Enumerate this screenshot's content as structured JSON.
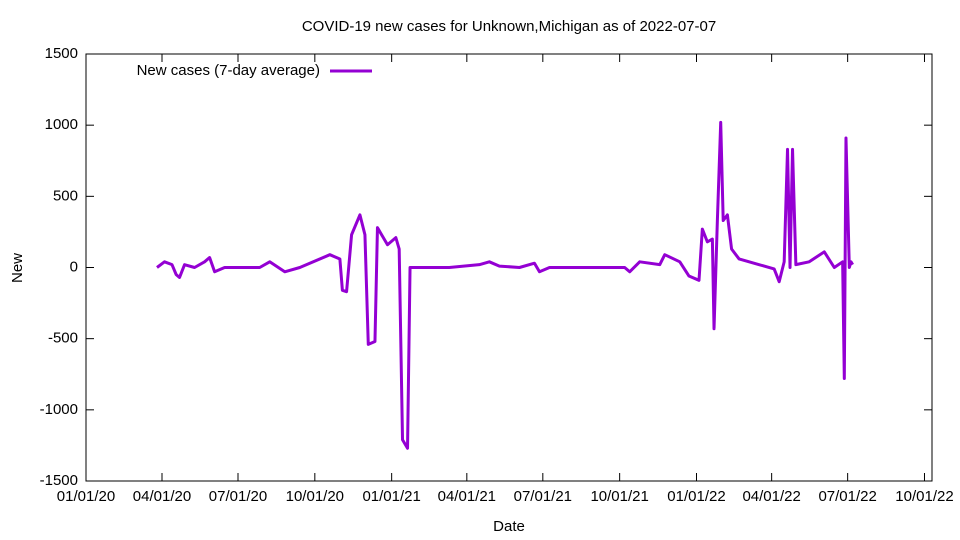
{
  "chart_data": {
    "type": "line",
    "title": "COVID-19 new cases for Unknown,Michigan as of 2022-07-07",
    "x_label": "Date",
    "y_label": "New",
    "legend": "top left",
    "xlim": [
      "2020-01-01",
      "2022-10-10"
    ],
    "ylim": [
      -1500,
      1500
    ],
    "yticks": [
      -1500,
      -1000,
      -500,
      0,
      500,
      1000,
      1500
    ],
    "xticks": [
      {
        "value": "2020-01-01",
        "label": "01/01/20"
      },
      {
        "value": "2020-04-01",
        "label": "04/01/20"
      },
      {
        "value": "2020-07-01",
        "label": "07/01/20"
      },
      {
        "value": "2020-10-01",
        "label": "10/01/20"
      },
      {
        "value": "2021-01-01",
        "label": "01/01/21"
      },
      {
        "value": "2021-04-01",
        "label": "04/01/21"
      },
      {
        "value": "2021-07-01",
        "label": "07/01/21"
      },
      {
        "value": "2021-10-01",
        "label": "10/01/21"
      },
      {
        "value": "2022-01-01",
        "label": "01/01/22"
      },
      {
        "value": "2022-04-01",
        "label": "04/01/22"
      },
      {
        "value": "2022-07-01",
        "label": "07/01/22"
      },
      {
        "value": "2022-10-01",
        "label": "10/01/22"
      }
    ],
    "x": [
      "2020-03-26",
      "2020-04-04",
      "2020-04-13",
      "2020-04-18",
      "2020-04-22",
      "2020-04-28",
      "2020-05-10",
      "2020-05-22",
      "2020-05-28",
      "2020-06-03",
      "2020-06-15",
      "2020-07-27",
      "2020-08-08",
      "2020-08-26",
      "2020-09-13",
      "2020-10-19",
      "2020-10-31",
      "2020-11-03",
      "2020-11-08",
      "2020-11-14",
      "2020-11-24",
      "2020-11-30",
      "2020-12-04",
      "2020-12-12",
      "2020-12-15",
      "2020-12-27",
      "2021-01-06",
      "2021-01-10",
      "2021-01-14",
      "2021-01-20",
      "2021-01-23",
      "2021-03-11",
      "2021-04-16",
      "2021-04-28",
      "2021-05-10",
      "2021-06-03",
      "2021-06-21",
      "2021-06-27",
      "2021-07-09",
      "2021-10-07",
      "2021-10-13",
      "2021-10-25",
      "2021-11-18",
      "2021-11-24",
      "2021-12-12",
      "2021-12-23",
      "2022-01-04",
      "2022-01-08",
      "2022-01-14",
      "2022-01-20",
      "2022-01-22",
      "2022-01-26",
      "2022-01-30",
      "2022-02-02",
      "2022-02-07",
      "2022-02-12",
      "2022-02-21",
      "2022-03-17",
      "2022-04-04",
      "2022-04-10",
      "2022-04-16",
      "2022-04-20",
      "2022-04-23",
      "2022-04-26",
      "2022-04-30",
      "2022-05-16",
      "2022-06-03",
      "2022-06-15",
      "2022-06-25",
      "2022-06-27",
      "2022-06-29",
      "2022-07-03",
      "2022-07-05",
      "2022-07-07"
    ],
    "series": [
      {
        "name": "New cases (7-day average)",
        "color": "#9400d3",
        "values": [
          0,
          40,
          20,
          -50,
          -70,
          20,
          0,
          40,
          70,
          -30,
          0,
          0,
          40,
          -30,
          0,
          90,
          60,
          -160,
          -170,
          230,
          370,
          230,
          -540,
          -520,
          280,
          160,
          210,
          130,
          -1210,
          -1270,
          0,
          0,
          20,
          40,
          10,
          0,
          30,
          -30,
          0,
          0,
          -30,
          40,
          20,
          90,
          40,
          -60,
          -90,
          270,
          180,
          200,
          -430,
          330,
          1020,
          330,
          370,
          130,
          60,
          20,
          -10,
          -100,
          40,
          830,
          0,
          830,
          20,
          40,
          110,
          0,
          40,
          -780,
          910,
          0,
          40,
          20
        ]
      }
    ]
  }
}
